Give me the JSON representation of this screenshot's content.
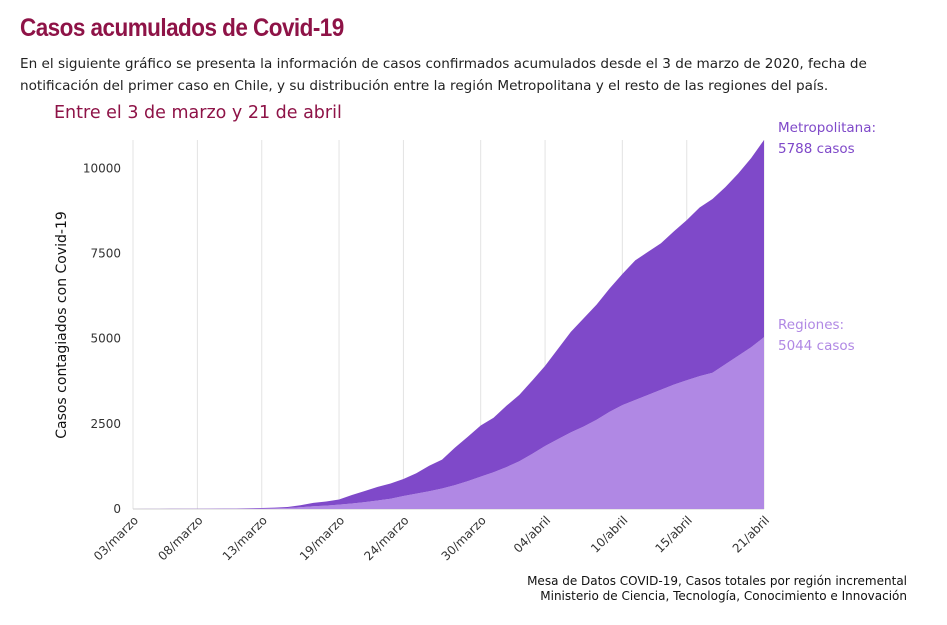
{
  "header": {
    "title": "Casos acumulados de Covid-19",
    "subtitle": "En el siguiente gráfico se presenta la información de casos confirmados acumulados desde el 3 de marzo de 2020, fecha de notificación del primer caso en Chile, y su distribución entre la región Metropolitana y el resto de las regiones del país."
  },
  "source": {
    "line1": "Mesa de Datos COVID-19, Casos totales por región incremental",
    "line2": "Ministerio de Ciencia, Tecnología, Conocimiento e Innovación"
  },
  "chart_data": {
    "type": "area",
    "stacked": true,
    "title": "Entre el 3 de marzo y 21 de abril",
    "ylabel": "Casos contagiados con Covid-19",
    "xlabel": "",
    "ylim": [
      0,
      10832
    ],
    "y_ticks": [
      0,
      2500,
      5000,
      7500,
      10000
    ],
    "x_ticks": [
      "03/marzo",
      "08/marzo",
      "13/marzo",
      "19/marzo",
      "24/marzo",
      "30/marzo",
      "04/abril",
      "10/abril",
      "15/abril",
      "21/abril"
    ],
    "grid": "vertical",
    "colors": {
      "regiones": "#b088e4",
      "metropolitana": "#7f49c9",
      "title": "#8e1347"
    },
    "x": [
      "03/03",
      "04/03",
      "05/03",
      "06/03",
      "07/03",
      "08/03",
      "09/03",
      "10/03",
      "11/03",
      "12/03",
      "13/03",
      "14/03",
      "15/03",
      "16/03",
      "17/03",
      "18/03",
      "19/03",
      "20/03",
      "21/03",
      "22/03",
      "23/03",
      "24/03",
      "25/03",
      "26/03",
      "27/03",
      "28/03",
      "29/03",
      "30/03",
      "31/03",
      "01/04",
      "02/04",
      "03/04",
      "04/04",
      "05/04",
      "06/04",
      "07/04",
      "08/04",
      "09/04",
      "10/04",
      "11/04",
      "12/04",
      "13/04",
      "14/04",
      "15/04",
      "16/04",
      "17/04",
      "18/04",
      "19/04",
      "20/04",
      "21/04"
    ],
    "series": [
      {
        "name": "Regiones",
        "label_value": "5044 casos",
        "values": [
          1,
          2,
          3,
          3,
          4,
          5,
          6,
          8,
          9,
          12,
          15,
          20,
          30,
          50,
          80,
          100,
          130,
          160,
          200,
          250,
          300,
          380,
          450,
          520,
          600,
          700,
          820,
          950,
          1080,
          1230,
          1400,
          1620,
          1850,
          2050,
          2250,
          2420,
          2620,
          2850,
          3050,
          3200,
          3350,
          3500,
          3650,
          3780,
          3900,
          4000,
          4250,
          4500,
          4750,
          5044
        ]
      },
      {
        "name": "Metropolitana",
        "label_value": "5788 casos",
        "values": [
          0,
          1,
          2,
          3,
          3,
          4,
          5,
          5,
          7,
          10,
          15,
          20,
          30,
          60,
          100,
          120,
          150,
          250,
          330,
          400,
          450,
          500,
          600,
          750,
          850,
          1100,
          1300,
          1500,
          1600,
          1800,
          1950,
          2150,
          2350,
          2650,
          2950,
          3180,
          3380,
          3620,
          3850,
          4100,
          4200,
          4300,
          4500,
          4700,
          4950,
          5100,
          5200,
          5350,
          5550,
          5788
        ]
      }
    ]
  }
}
